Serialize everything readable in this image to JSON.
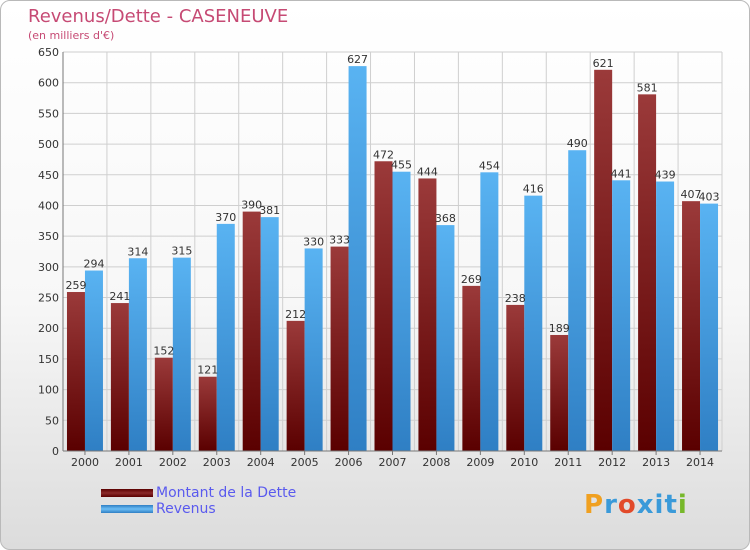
{
  "chart_data": {
    "type": "bar",
    "title": "Revenus/Dette - CASENEUVE",
    "subtitle": "(en milliers d'€)",
    "categories": [
      "2000",
      "2001",
      "2002",
      "2003",
      "2004",
      "2005",
      "2006",
      "2007",
      "2008",
      "2009",
      "2010",
      "2011",
      "2012",
      "2013",
      "2014"
    ],
    "series": [
      {
        "name": "Montant de la Dette",
        "color": "#7a1a1a",
        "values": [
          259,
          241,
          152,
          121,
          390,
          212,
          333,
          472,
          444,
          269,
          238,
          189,
          621,
          581,
          407
        ]
      },
      {
        "name": "Revenus",
        "color": "#4aa3e6",
        "values": [
          294,
          314,
          315,
          370,
          381,
          330,
          627,
          455,
          368,
          454,
          416,
          490,
          441,
          439,
          403
        ]
      }
    ],
    "ylim": [
      0,
      650
    ],
    "yticks": [
      0,
      50,
      100,
      150,
      200,
      250,
      300,
      350,
      400,
      450,
      500,
      550,
      600,
      650
    ],
    "grid": true,
    "legend_position": "bottom-left"
  },
  "logo": {
    "letters": [
      "P",
      "r",
      "o",
      "x",
      "i",
      "t",
      "i"
    ],
    "colors": [
      "#f0a020",
      "#3a9ad9",
      "#e24a2a",
      "#3a9ad9",
      "#3a9ad9",
      "#3a9ad9",
      "#77b82a"
    ]
  }
}
